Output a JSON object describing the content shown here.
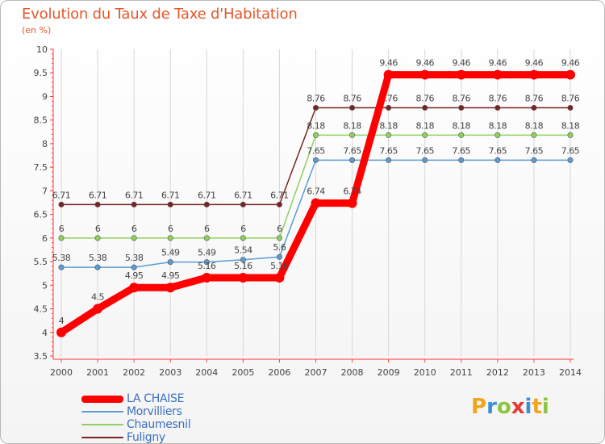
{
  "title": "Evolution du Taux de Taxe d'Habitation",
  "unit_label": "(en %)",
  "brand": {
    "letters": [
      "P",
      "r",
      "o",
      "x",
      "i",
      "t",
      "i"
    ],
    "colors": [
      "#f2a51a",
      "#3b8fd9",
      "#8cc63e",
      "#e53935",
      "#3b8fd9",
      "#f2a51a",
      "#8cc63e"
    ]
  },
  "chart_data": {
    "type": "line",
    "title": "Evolution du Taux de Taxe d'Habitation",
    "ylabel": "(en %)",
    "xlabel": "",
    "ylim": [
      3.5,
      10
    ],
    "y_ticks": [
      "3.5",
      "4",
      "4.5",
      "5",
      "5.5",
      "6",
      "6.5",
      "7",
      "7.5",
      "8",
      "8.5",
      "9",
      "9.5",
      "10"
    ],
    "categories": [
      "2000",
      "2001",
      "2002",
      "2003",
      "2004",
      "2005",
      "2006",
      "2007",
      "2008",
      "2009",
      "2010",
      "2011",
      "2012",
      "2013",
      "2014"
    ],
    "series": [
      {
        "name": "Fuligny",
        "color": "#7a2323",
        "values": [
          6.71,
          6.71,
          6.71,
          6.71,
          6.71,
          6.71,
          6.71,
          8.76,
          8.76,
          8.76,
          8.76,
          8.76,
          8.76,
          8.76,
          8.76
        ],
        "labels": [
          "6.71",
          "6.71",
          "6.71",
          "6.71",
          "6.71",
          "6.71",
          "6.71",
          "8.76",
          "8.76",
          "8.76",
          "8.76",
          "8.76",
          "8.76",
          "8.76",
          "8.76"
        ]
      },
      {
        "name": "Chaumesnil",
        "color": "#8fd15c",
        "values": [
          6,
          6,
          6,
          6,
          6,
          6,
          6,
          8.18,
          8.18,
          8.18,
          8.18,
          8.18,
          8.18,
          8.18,
          8.18
        ],
        "labels": [
          "6",
          "6",
          "6",
          "6",
          "6",
          "6",
          "6",
          "8.18",
          "8.18",
          "8.18",
          "8.18",
          "8.18",
          "8.18",
          "8.18",
          "8.18"
        ]
      },
      {
        "name": "Morvilliers",
        "color": "#5b9bd5",
        "values": [
          5.38,
          5.38,
          5.38,
          5.49,
          5.49,
          5.54,
          5.6,
          7.65,
          7.65,
          7.65,
          7.65,
          7.65,
          7.65,
          7.65,
          7.65
        ],
        "labels": [
          "5.38",
          "5.38",
          "5.38",
          "5.49",
          "5.49",
          "5.54",
          "5.6",
          "7.65",
          "7.65",
          "7.65",
          "7.65",
          "7.65",
          "7.65",
          "7.65",
          "7.65"
        ]
      },
      {
        "name": "LA CHAISE",
        "color": "#ff0000",
        "values": [
          4,
          4.5,
          4.95,
          4.95,
          5.16,
          5.16,
          5.16,
          6.74,
          6.74,
          9.46,
          9.46,
          9.46,
          9.46,
          9.46,
          9.46
        ],
        "labels": [
          "4",
          "4.5",
          "4.95",
          "4.95",
          "5.16",
          "5.16",
          "5.16",
          "6.74",
          "6.74",
          "9.46",
          "9.46",
          "9.46",
          "9.46",
          "9.46",
          "9.46"
        ]
      }
    ],
    "legend": {
      "placement": "bottom-left",
      "entries": [
        "LA CHAISE",
        "Morvilliers",
        "Chaumesnil",
        "Fuligny"
      ]
    }
  }
}
